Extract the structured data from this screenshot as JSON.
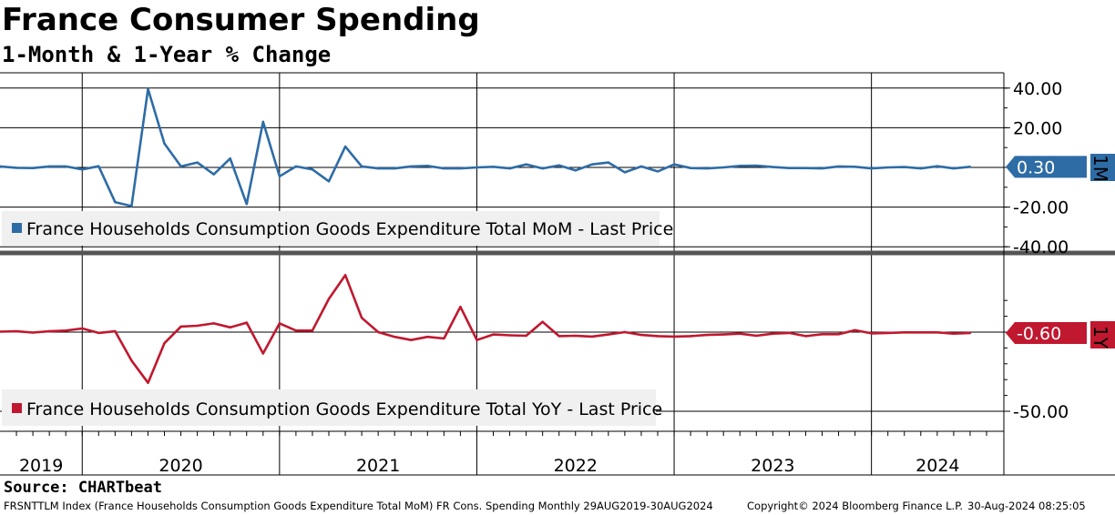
{
  "title": "France Consumer Spending",
  "subtitle": "1-Month & 1-Year % Change",
  "source": "Source: CHARTbeat",
  "footer": {
    "left": "FRSNTTLM Index (France Households Consumption Goods Expenditure Total MoM) FR Cons. Spending  Monthly 29AUG2019-30AUG2024",
    "center": "Copyright© 2024 Bloomberg Finance L.P.",
    "right": "30-Aug-2024 08:25:05"
  },
  "colors": {
    "mom": "#2e6ca6",
    "yoy": "#c0182f",
    "grid": "#000000",
    "legend_bg": "#f0f0f0"
  },
  "chart_data": [
    {
      "type": "line",
      "panel": "top",
      "tag": "1M",
      "legend": "France Households Consumption Goods Expenditure Total MoM - Last Price",
      "last_value_label": "0.30",
      "ylim": [
        -40,
        40
      ],
      "y_ticks": [
        40,
        20,
        0,
        -20,
        -40
      ],
      "y_tick_labels": [
        "40.00",
        "20.00",
        "",
        "-20.00",
        "-40.00"
      ],
      "x": [
        "2019-08",
        "2019-09",
        "2019-10",
        "2019-11",
        "2019-12",
        "2020-01",
        "2020-02",
        "2020-03",
        "2020-04",
        "2020-05",
        "2020-06",
        "2020-07",
        "2020-08",
        "2020-09",
        "2020-10",
        "2020-11",
        "2020-12",
        "2021-01",
        "2021-02",
        "2021-03",
        "2021-04",
        "2021-05",
        "2021-06",
        "2021-07",
        "2021-08",
        "2021-09",
        "2021-10",
        "2021-11",
        "2021-12",
        "2022-01",
        "2022-02",
        "2022-03",
        "2022-04",
        "2022-05",
        "2022-06",
        "2022-07",
        "2022-08",
        "2022-09",
        "2022-10",
        "2022-11",
        "2022-12",
        "2023-01",
        "2023-02",
        "2023-03",
        "2023-04",
        "2023-05",
        "2023-06",
        "2023-07",
        "2023-08",
        "2023-09",
        "2023-10",
        "2023-11",
        "2023-12",
        "2024-01",
        "2024-02",
        "2024-03",
        "2024-04",
        "2024-05",
        "2024-06",
        "2024-07"
      ],
      "series": [
        {
          "values": [
            0.5,
            -0.2,
            -0.3,
            0.5,
            0.5,
            -1.0,
            0.6,
            -17.5,
            -19.5,
            39.5,
            12.0,
            0.5,
            2.5,
            -3.5,
            4.5,
            -18.5,
            23.0,
            -4.5,
            0.5,
            -1.0,
            -7.0,
            10.5,
            0.5,
            -0.5,
            -0.5,
            0.5,
            0.8,
            -0.5,
            -0.5,
            0.0,
            0.3,
            -0.5,
            1.5,
            -0.5,
            1.0,
            -1.5,
            1.5,
            2.5,
            -2.5,
            0.5,
            -2.0,
            1.5,
            -0.3,
            -0.5,
            0.0,
            0.8,
            0.9,
            0.2,
            -0.3,
            -0.3,
            -0.5,
            0.5,
            0.3,
            -0.5,
            0.0,
            0.2,
            -0.5,
            0.6,
            -0.5,
            0.3
          ]
        }
      ]
    },
    {
      "type": "line",
      "panel": "bottom",
      "tag": "1Y",
      "legend": "France Households Consumption Goods Expenditure Total YoY - Last Price",
      "last_value_label": "-0.60",
      "ylim": [
        -57,
        20
      ],
      "y_ticks": [
        -50
      ],
      "y_tick_labels": [
        "-50.00"
      ],
      "x": [
        "2019-08",
        "2019-09",
        "2019-10",
        "2019-11",
        "2019-12",
        "2020-01",
        "2020-02",
        "2020-03",
        "2020-04",
        "2020-05",
        "2020-06",
        "2020-07",
        "2020-08",
        "2020-09",
        "2020-10",
        "2020-11",
        "2020-12",
        "2021-01",
        "2021-02",
        "2021-03",
        "2021-04",
        "2021-05",
        "2021-06",
        "2021-07",
        "2021-08",
        "2021-09",
        "2021-10",
        "2021-11",
        "2021-12",
        "2022-01",
        "2022-02",
        "2022-03",
        "2022-04",
        "2022-05",
        "2022-06",
        "2022-07",
        "2022-08",
        "2022-09",
        "2022-10",
        "2022-11",
        "2022-12",
        "2023-01",
        "2023-02",
        "2023-03",
        "2023-04",
        "2023-05",
        "2023-06",
        "2023-07",
        "2023-08",
        "2023-09",
        "2023-10",
        "2023-11",
        "2023-12",
        "2024-01",
        "2024-02",
        "2024-03",
        "2024-04",
        "2024-05",
        "2024-06",
        "2024-07"
      ],
      "series": [
        {
          "values": [
            0.3,
            0.5,
            -0.3,
            0.5,
            1.0,
            2.3,
            -0.5,
            0.5,
            -18.0,
            -32.0,
            -7.0,
            3.5,
            4.0,
            5.5,
            3.0,
            6.0,
            -13.5,
            5.5,
            1.0,
            1.0,
            21.0,
            36.0,
            9.0,
            0.0,
            -3.0,
            -5.0,
            -3.0,
            -4.0,
            16.0,
            -5.0,
            -1.5,
            -2.0,
            -2.3,
            6.5,
            -2.5,
            -2.3,
            -2.8,
            -1.5,
            0.0,
            -1.8,
            -2.5,
            -2.8,
            -2.5,
            -1.8,
            -1.5,
            -1.0,
            -2.3,
            -1.0,
            -0.5,
            -2.5,
            -1.3,
            -1.3,
            1.2,
            -0.8,
            -0.5,
            -0.2,
            -0.2,
            -0.2,
            -1.0,
            -0.6
          ]
        }
      ]
    }
  ],
  "x_axis": {
    "years": [
      "2019",
      "2020",
      "2021",
      "2022",
      "2023",
      "2024"
    ],
    "start": "2019-08",
    "end": "2024-08"
  }
}
